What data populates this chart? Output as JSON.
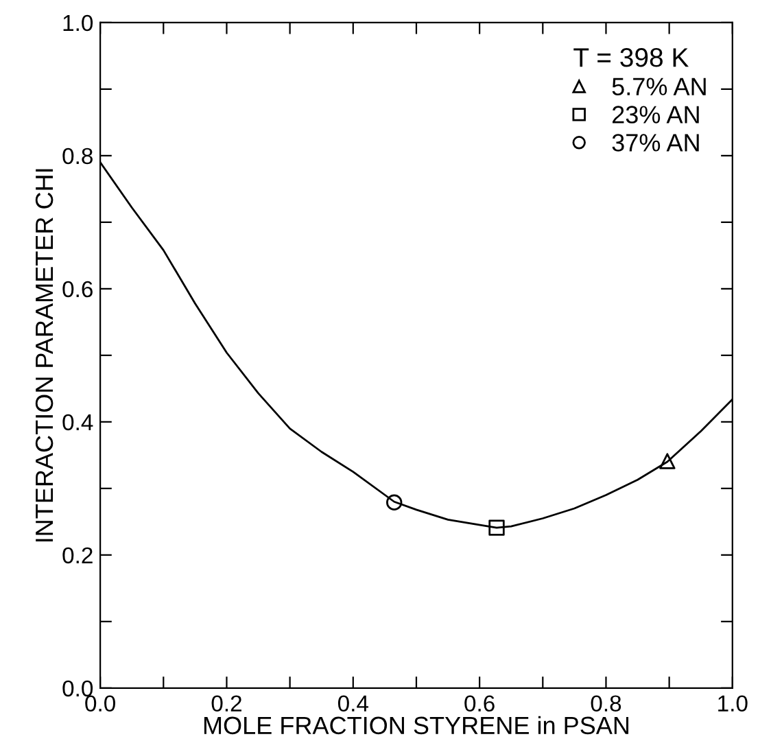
{
  "chart_data": {
    "type": "line",
    "xlabel": "MOLE FRACTION STYRENE in PSAN",
    "ylabel": "INTERACTION PARAMETER CHI",
    "legend_title": "T = 398 K",
    "legend": "top right",
    "xlim": [
      0,
      1
    ],
    "ylim": [
      0,
      1
    ],
    "xticks": [
      {
        "value": 0,
        "label": "0.0"
      },
      {
        "value": 0.1,
        "label": null
      },
      0.2,
      {
        "value": 0.3,
        "label": null
      },
      0.4,
      {
        "value": 0.5,
        "label": null
      },
      0.6,
      {
        "value": 0.7,
        "label": null
      },
      0.8,
      {
        "value": 0.9,
        "label": null
      },
      {
        "value": 1,
        "label": "1.0"
      }
    ],
    "yticks": [
      {
        "value": 0,
        "label": "0.0"
      },
      {
        "value": 0.1,
        "label": null
      },
      0.2,
      {
        "value": 0.3,
        "label": null
      },
      0.4,
      {
        "value": 0.5,
        "label": null
      },
      0.6,
      {
        "value": 0.7,
        "label": null
      },
      0.8,
      {
        "value": 0.9,
        "label": null
      },
      {
        "value": 1,
        "label": "1.0"
      }
    ],
    "series": [
      {
        "color": "#000000",
        "marker": "none",
        "x": [
          0,
          0.05,
          0.1,
          0.15,
          0.2,
          0.25,
          0.3,
          0.35,
          0.4,
          0.465,
          0.5,
          0.55,
          0.627,
          0.65,
          0.7,
          0.75,
          0.8,
          0.85,
          0.897,
          0.95,
          1.0
        ],
        "values": [
          0.79,
          0.722,
          0.658,
          0.578,
          0.504,
          0.443,
          0.39,
          0.355,
          0.325,
          0.28,
          0.268,
          0.253,
          0.241,
          0.243,
          0.255,
          0.27,
          0.29,
          0.313,
          0.34,
          0.386,
          0.434
        ]
      },
      {
        "type": "scatter",
        "name": "5.7% AN",
        "color": "#000000",
        "marker": "triangle",
        "x": [
          0.897
        ],
        "values": [
          0.341
        ]
      },
      {
        "type": "scatter",
        "name": "23% AN",
        "color": "#000000",
        "marker": "square",
        "x": [
          0.627
        ],
        "values": [
          0.241
        ]
      },
      {
        "type": "scatter",
        "name": "37% AN",
        "color": "#000000",
        "marker": "circle",
        "x": [
          0.465
        ],
        "values": [
          0.279
        ]
      }
    ]
  }
}
